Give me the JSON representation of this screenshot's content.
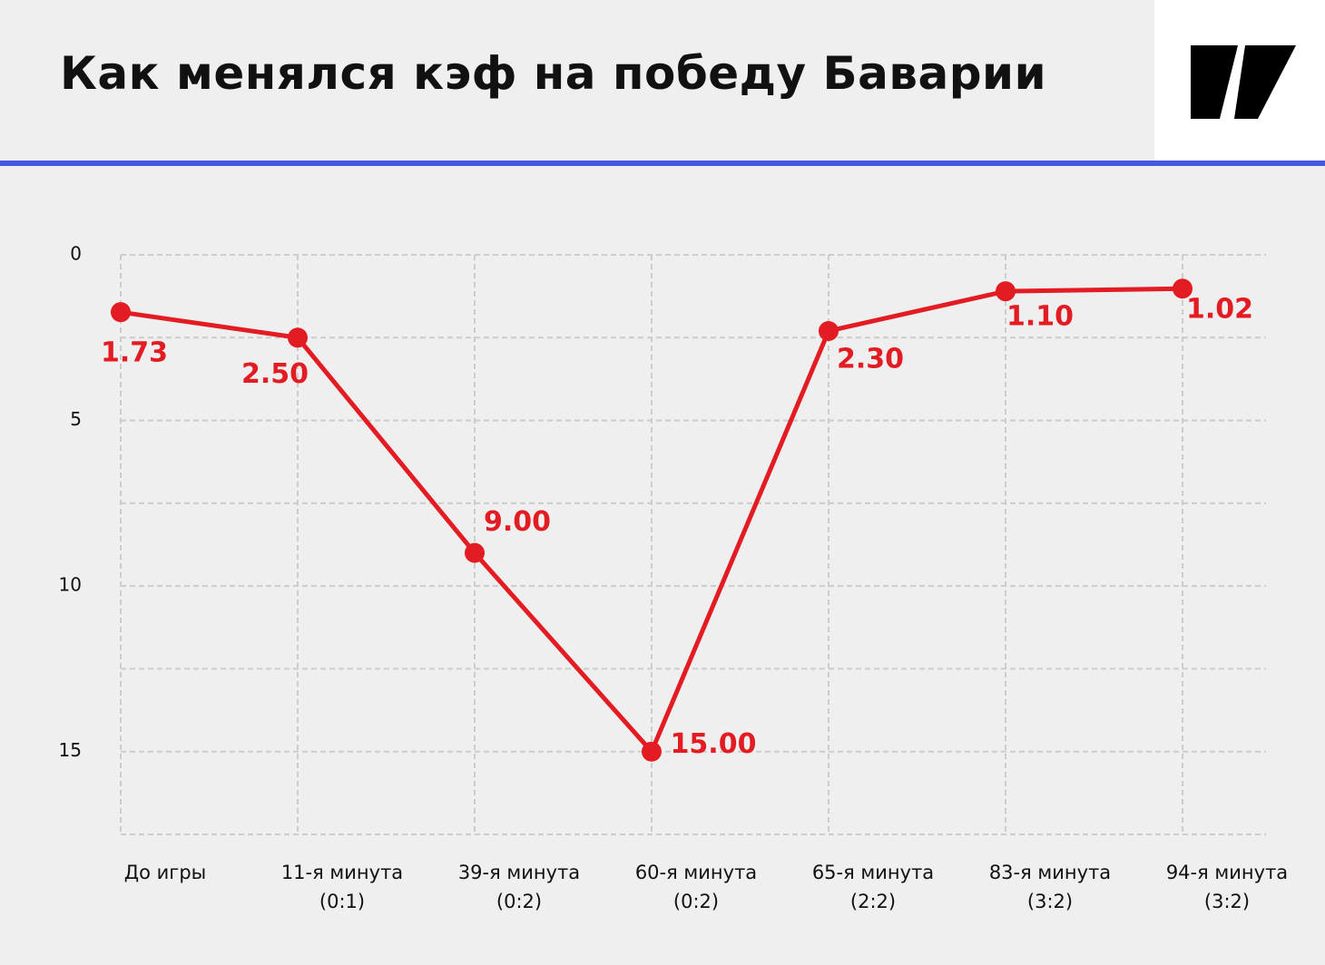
{
  "chart_data": {
    "type": "line",
    "title": "Как менялся кэф на победу Баварии",
    "categories": [
      "До игры",
      "11-я минута\n(0:1)",
      "39-я минута\n(0:2)",
      "60-я минута\n(0:2)",
      "65-я минута\n(2:2)",
      "83-я минута\n(3:2)",
      "94-я минута\n(3:2)"
    ],
    "series": [
      {
        "color": "#e31b22",
        "values": [
          1.73,
          2.5,
          9.0,
          15.0,
          2.3,
          1.1,
          1.02
        ],
        "value_labels": [
          "1.73",
          "2.50",
          "9.00",
          "15.00",
          "2.30",
          "1.10",
          "1.02"
        ]
      }
    ],
    "ylim": [
      0,
      17.5
    ],
    "y_inverted": true,
    "yticks": [
      0,
      5,
      10,
      15
    ],
    "minor_yticks": [
      2.5,
      7.5,
      12.5,
      17.5
    ],
    "grid": true
  }
}
